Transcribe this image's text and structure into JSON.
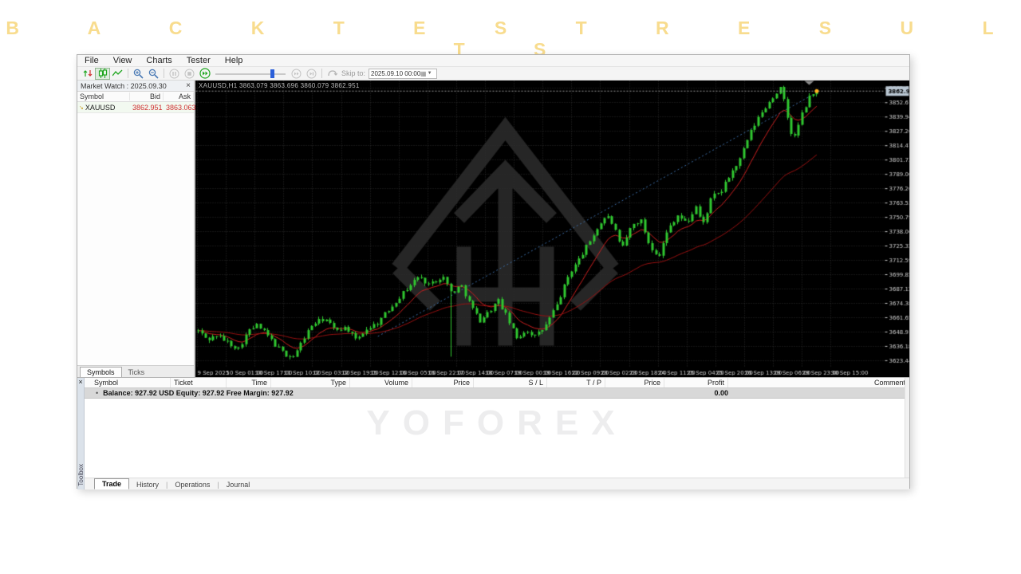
{
  "page": {
    "title": "B A C K T E S T   R E S U L T S",
    "title_text": "BACKTEST RESULTS",
    "title_color": "#f8dc8e",
    "watermark": "YOFOREX"
  },
  "menu": {
    "items": [
      "File",
      "View",
      "Charts",
      "Tester",
      "Help"
    ]
  },
  "toolbar": {
    "icons": [
      "tick-arrows",
      "candlesticks",
      "line-chart",
      "zoom-in",
      "zoom-out",
      "pause",
      "stop",
      "fast-forward",
      "speed-slider",
      "step-forward",
      "step-to-end",
      "skip-loop",
      "calendar",
      "dropdown-arrow"
    ],
    "skip_to_label": "Skip to:",
    "skip_to_value": "2025.09.10 00:00"
  },
  "market_watch": {
    "title": "Market Watch : 2025.09.30",
    "close_glyph": "×",
    "columns": [
      "Symbol",
      "Bid",
      "Ask"
    ],
    "rows": [
      {
        "symbol": "XAUUSD",
        "bid": "3862.951",
        "ask": "3863.063"
      }
    ],
    "tabs": [
      "Symbols",
      "Ticks"
    ],
    "active_tab": 0,
    "price_color": "#d03030"
  },
  "chart": {
    "title_line": "XAUUSD,H1 3863.079 3863.696 3860.079 3862.951"
  },
  "chart_data": {
    "type": "candlestick",
    "symbol": "XAUUSD",
    "timeframe": "H1",
    "ohlc": {
      "open": 3863.079,
      "high": 3863.696,
      "low": 3860.079,
      "close": 3862.951
    },
    "current_price": 3862.951,
    "current_price_label": "3862.951",
    "price_range": [
      3617,
      3872
    ],
    "y_ticks": [
      "3865.410",
      "3852.675",
      "3839.940",
      "3827.205",
      "3814.470",
      "3801.735",
      "3789.000",
      "3776.265",
      "3763.530",
      "3750.795",
      "3738.060",
      "3725.325",
      "3712.590",
      "3699.855",
      "3687.120",
      "3674.385",
      "3661.650",
      "3648.915",
      "3636.180",
      "3623.445"
    ],
    "x_ticks": [
      "9 Sep 2025",
      "10 Sep 01:00",
      "10 Sep 17:00",
      "11 Sep 10:00",
      "12 Sep 03:00",
      "12 Sep 19:00",
      "15 Sep 12:00",
      "16 Sep 05:00",
      "16 Sep 22:00",
      "17 Sep 14:00",
      "18 Sep 07:00",
      "19 Sep 00:00",
      "19 Sep 16:00",
      "22 Sep 09:00",
      "23 Sep 02:00",
      "23 Sep 18:00",
      "24 Sep 11:00",
      "25 Sep 04:00",
      "25 Sep 20:00",
      "26 Sep 13:00",
      "29 Sep 06:00",
      "29 Sep 23:00",
      "30 Sep 15:00"
    ],
    "price_path": [
      [
        0,
        3650
      ],
      [
        0.015,
        3642
      ],
      [
        0.03,
        3646
      ],
      [
        0.05,
        3639
      ],
      [
        0.065,
        3634
      ],
      [
        0.08,
        3649
      ],
      [
        0.095,
        3655
      ],
      [
        0.11,
        3647
      ],
      [
        0.125,
        3637
      ],
      [
        0.14,
        3629
      ],
      [
        0.155,
        3627
      ],
      [
        0.17,
        3643
      ],
      [
        0.185,
        3656
      ],
      [
        0.205,
        3661
      ],
      [
        0.22,
        3651
      ],
      [
        0.24,
        3653
      ],
      [
        0.255,
        3641
      ],
      [
        0.27,
        3651
      ],
      [
        0.29,
        3657
      ],
      [
        0.325,
        3680
      ],
      [
        0.355,
        3698
      ],
      [
        0.375,
        3691
      ],
      [
        0.395,
        3699
      ],
      [
        0.41,
        3683
      ],
      [
        0.425,
        3691
      ],
      [
        0.44,
        3673
      ],
      [
        0.455,
        3659
      ],
      [
        0.47,
        3667
      ],
      [
        0.485,
        3677
      ],
      [
        0.5,
        3661
      ],
      [
        0.515,
        3643
      ],
      [
        0.53,
        3651
      ],
      [
        0.545,
        3645
      ],
      [
        0.56,
        3653
      ],
      [
        0.58,
        3673
      ],
      [
        0.6,
        3701
      ],
      [
        0.615,
        3713
      ],
      [
        0.63,
        3727
      ],
      [
        0.645,
        3741
      ],
      [
        0.66,
        3753
      ],
      [
        0.672,
        3743
      ],
      [
        0.684,
        3721
      ],
      [
        0.7,
        3743
      ],
      [
        0.715,
        3749
      ],
      [
        0.73,
        3725
      ],
      [
        0.745,
        3717
      ],
      [
        0.76,
        3741
      ],
      [
        0.775,
        3753
      ],
      [
        0.79,
        3745
      ],
      [
        0.805,
        3761
      ],
      [
        0.815,
        3743
      ],
      [
        0.83,
        3769
      ],
      [
        0.845,
        3773
      ],
      [
        0.86,
        3789
      ],
      [
        0.875,
        3801
      ],
      [
        0.89,
        3823
      ],
      [
        0.905,
        3839
      ],
      [
        0.92,
        3851
      ],
      [
        0.932,
        3860
      ],
      [
        0.942,
        3866
      ],
      [
        0.952,
        3841
      ],
      [
        0.962,
        3818
      ],
      [
        0.975,
        3841
      ],
      [
        0.988,
        3857
      ],
      [
        1,
        3862.951
      ]
    ],
    "spike": {
      "t": 0.41,
      "low": 3627
    },
    "trend_line": {
      "from": [
        0.29,
        3645
      ],
      "to": [
        0.99,
        3860
      ]
    },
    "colors": {
      "bg": "#000000",
      "grid": "#2e2e2e",
      "candle": "#30c830",
      "ma_fast": "#cc1f1f",
      "ma_slow": "#991111",
      "trend": "#3c6ea8",
      "axis_text": "#cfcfcf",
      "price_line": "#9a9a9a",
      "price_box_bg": "#b9c6d2",
      "price_box_text": "#000000",
      "last_dot": "#ffb020",
      "watermark": "#262626"
    },
    "legend_position": "none",
    "grid": true
  },
  "toolbox": {
    "vertical_label": "Toolbox",
    "close_glyph": "×",
    "columns": [
      "Symbol",
      "Ticket",
      "Time",
      "Type",
      "Volume",
      "Price",
      "S / L",
      "T / P",
      "Price",
      "Profit",
      "Comment"
    ],
    "balance_row": {
      "text": "Balance: 927.92 USD  Equity: 927.92  Free Margin: 927.92",
      "profit": "0.00"
    },
    "tabs": [
      "Trade",
      "History",
      "Operations",
      "Journal"
    ],
    "active_tab": 0
  }
}
